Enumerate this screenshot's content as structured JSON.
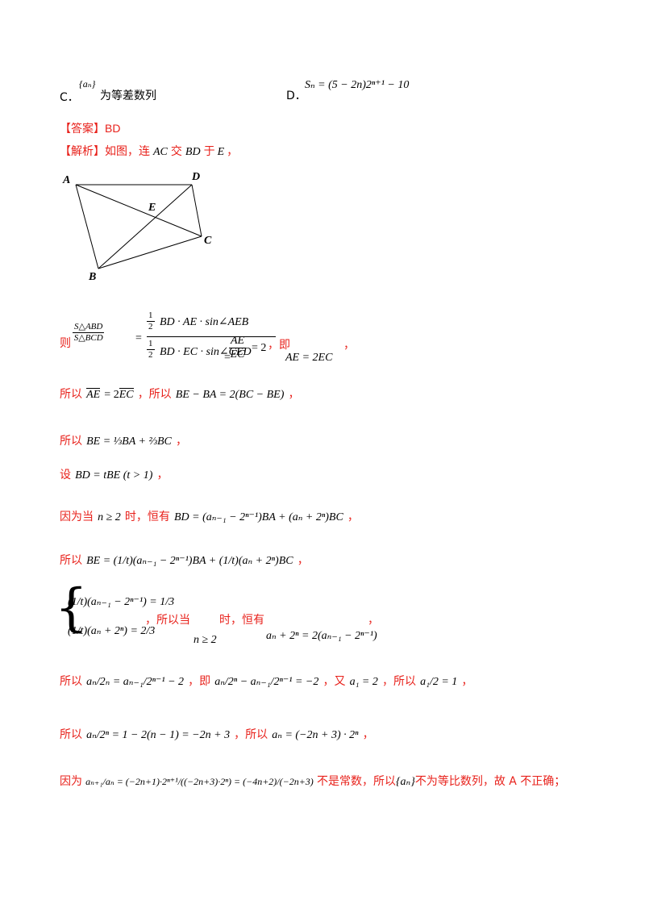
{
  "options": {
    "c_label": "C．",
    "c_math": "{aₙ}",
    "c_text": "为等差数列",
    "d_label": "D．",
    "d_math": "Sₙ = (5 − 2n)2ⁿ⁺¹ − 10"
  },
  "answer": {
    "tag": "【答案】",
    "value": "BD"
  },
  "analysis": {
    "tag": "【解析】",
    "intro": "如图，连",
    "ac": "AC",
    "jiao": "交",
    "bd": "BD",
    "yu": "于",
    "e": "E",
    "comma": "，"
  },
  "figure": {
    "labels": {
      "A": "A",
      "B": "B",
      "C": "C",
      "D": "D",
      "E": "E"
    }
  },
  "lines": {
    "l1_ze": "则",
    "l1_lhs_num": "S△ABD",
    "l1_lhs_den": "S△BCD",
    "l1_half": "1",
    "l1_two": "2",
    "l1_top": "BD · AE · sin∠AEB",
    "l1_bot": "BD · EC · sin∠CED",
    "l1_r_num": "AE",
    "l1_r_den": "EC",
    "l1_eq2": "= 2",
    "l1_ji": "，即",
    "l1_result": "AE = 2EC",
    "l1_end": "，",
    "l2_suoyi": "所以",
    "l2_a": "AE",
    "l2_b": "= 2",
    "l2_c": "EC",
    "l2_suoyi2": "，所以",
    "l2_rhs": "BE − BA = 2(BC − BE)",
    "l2_end": "，",
    "l3_suoyi": "所以",
    "l3_rhs": "BE = ⅓BA + ⅔BC",
    "l3_end": "，",
    "l4_she": "设",
    "l4_rhs": "BD = tBE (t > 1)",
    "l4_end": "，",
    "l5_a": "因为当",
    "l5_cond": "n ≥ 2",
    "l5_b": "时，恒有",
    "l5_rhs": "BD = (aₙ₋₁ − 2ⁿ⁻¹)BA + (aₙ + 2ⁿ)BC",
    "l5_end": "，",
    "l6_suoyi": "所以",
    "l6_rhs": "BE = (1/t)(aₙ₋₁ − 2ⁿ⁻¹)BA + (1/t)(aₙ + 2ⁿ)BC",
    "l6_end": "，",
    "sys_row1": "(1/t)(aₙ₋₁ − 2ⁿ⁻¹) = 1/3",
    "sys_row2": "(1/t)(aₙ + 2ⁿ) = 2/3",
    "sys_text": "，所以当",
    "sys_text2": "时，恒有",
    "sys_cond": "n ≥ 2",
    "sys_result": "aₙ + 2ⁿ = 2(aₙ₋₁ − 2ⁿ⁻¹)",
    "sys_end": "，",
    "l8_suoyi": "所以",
    "l8_eq1": "aₙ/2ₙ = aₙ₋₁/2ⁿ⁻¹ − 2",
    "l8_ji": "，即",
    "l8_eq2": "aₙ/2ⁿ − aₙ₋₁/2ⁿ⁻¹ = −2",
    "l8_you": "，又",
    "l8_eq3": "a₁ = 2",
    "l8_suoyi2": "，所以",
    "l8_eq4": "a₁/2 = 1",
    "l8_end": "，",
    "l9_suoyi": "所以",
    "l9_eq": "aₙ/2ⁿ = 1 − 2(n − 1) = −2n + 3",
    "l9_suoyi2": "，所以",
    "l9_eq2": "aₙ = (−2n + 3) · 2ⁿ",
    "l9_end": "，",
    "l10_yinwei": "因为",
    "l10_eq": "aₙ₊₁/aₙ = (−2n+1)·2ⁿ⁺¹/((−2n+3)·2ⁿ) = (−4n+2)/(−2n+3)",
    "l10_text1": "不是常数，所以",
    "l10_seq": "{aₙ}",
    "l10_text2": "不为等比数列，故 A 不正确；"
  }
}
